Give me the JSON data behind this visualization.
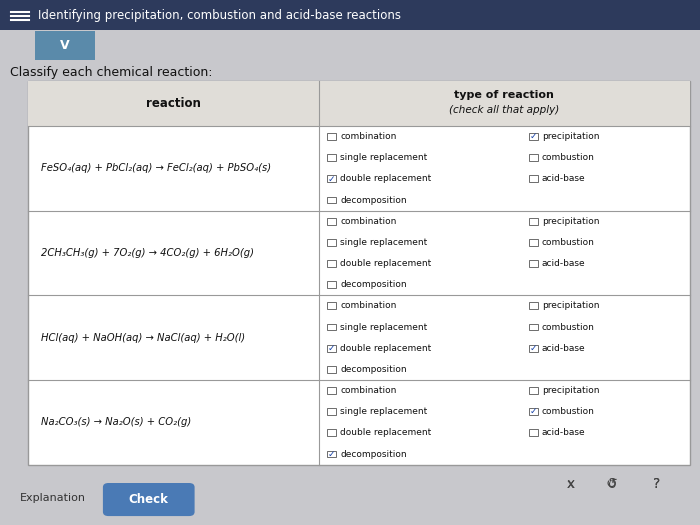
{
  "title": "Identifying precipitation, combustion and acid-base reactions",
  "subtitle": "Classify each chemical reaction:",
  "header_col1": "reaction",
  "header_col2_line1": "type of reaction",
  "header_col2_line2": "(check all that apply)",
  "reactions": [
    "FeSO₄(aq) + PbCl₂(aq) → FeCl₂(aq) + PbSO₄(s)",
    "2CH₃CH₃(g) + 7O₂(g) → 4CO₂(g) + 6H₂O(g)",
    "HCl(aq) + NaOH(aq) → NaCl(aq) + H₂O(l)",
    "Na₂CO₃(s) → Na₂O(s) + CO₂(g)"
  ],
  "checkboxes": [
    {
      "combination": false,
      "precipitation": true,
      "single_replacement": false,
      "combustion": false,
      "double_replacement": true,
      "acid_base": false,
      "decomposition": false
    },
    {
      "combination": false,
      "precipitation": false,
      "single_replacement": false,
      "combustion": false,
      "double_replacement": false,
      "acid_base": false,
      "decomposition": false
    },
    {
      "combination": false,
      "precipitation": false,
      "single_replacement": false,
      "combustion": false,
      "double_replacement": true,
      "acid_base": true,
      "decomposition": false
    },
    {
      "combination": false,
      "precipitation": false,
      "single_replacement": false,
      "combustion": true,
      "double_replacement": false,
      "acid_base": false,
      "decomposition": true
    }
  ],
  "bg_color": "#c8c8cc",
  "title_bg": "#2d3a5c",
  "title_color": "#ffffff",
  "table_bg": "#ffffff",
  "header_bg": "#e0ddd8",
  "border_color": "#999999",
  "check_color": "#1a44aa",
  "button_color": "#4a7ab5",
  "button_text": "Check",
  "explanation_text": "Explanation",
  "dropdown_color": "#5a8aaa"
}
